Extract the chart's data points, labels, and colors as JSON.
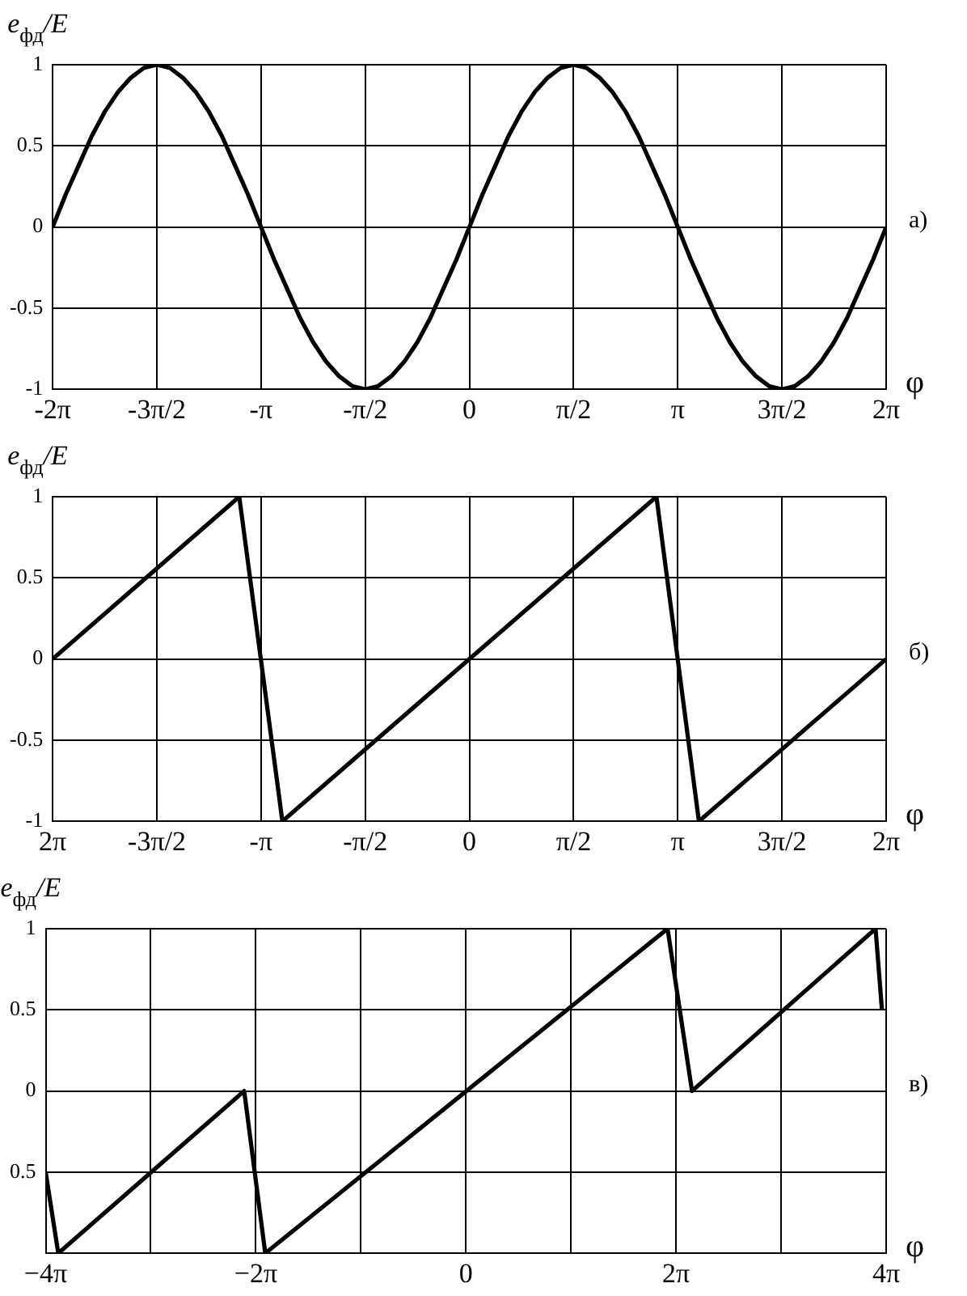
{
  "chart_data": [
    {
      "type": "line",
      "ylabel": "e$_{фд}$/E",
      "xlabel": "φ",
      "annotations": [
        "а)"
      ],
      "grid": true,
      "legend": false,
      "marker": "none",
      "line_style": "solid",
      "x": [
        -6.283,
        -6.087,
        -5.89,
        -5.694,
        -5.498,
        -5.301,
        -5.105,
        -4.909,
        -4.712,
        -4.516,
        -4.32,
        -4.123,
        -3.927,
        -3.731,
        -3.534,
        -3.338,
        -3.142,
        -2.945,
        -2.749,
        -2.553,
        -2.356,
        -2.16,
        -1.963,
        -1.767,
        -1.571,
        -1.374,
        -1.178,
        -0.982,
        -0.785,
        -0.589,
        -0.393,
        -0.196,
        0,
        0.196,
        0.393,
        0.589,
        0.785,
        0.982,
        1.178,
        1.374,
        1.571,
        1.767,
        1.963,
        2.16,
        2.356,
        2.553,
        2.749,
        2.945,
        3.142,
        3.338,
        3.534,
        3.731,
        3.927,
        4.123,
        4.32,
        4.516,
        4.712,
        4.909,
        5.105,
        5.301,
        5.498,
        5.694,
        5.89,
        6.087,
        6.283
      ],
      "series": [
        {
          "color": "#000000",
          "values": [
            0,
            0.2,
            0.38,
            0.56,
            0.71,
            0.83,
            0.92,
            0.98,
            1,
            0.98,
            0.92,
            0.83,
            0.71,
            0.56,
            0.38,
            0.2,
            0,
            -0.2,
            -0.38,
            -0.56,
            -0.71,
            -0.83,
            -0.92,
            -0.98,
            -1,
            -0.98,
            -0.92,
            -0.83,
            -0.71,
            -0.56,
            -0.38,
            -0.2,
            0,
            0.2,
            0.38,
            0.56,
            0.71,
            0.83,
            0.92,
            0.98,
            1,
            0.98,
            0.92,
            0.83,
            0.71,
            0.56,
            0.38,
            0.2,
            0,
            -0.2,
            -0.38,
            -0.56,
            -0.71,
            -0.83,
            -0.92,
            -0.98,
            -1,
            -0.98,
            -0.92,
            -0.83,
            -0.71,
            -0.56,
            -0.38,
            -0.2,
            0
          ]
        }
      ],
      "xlim": [
        -6.283,
        6.283
      ],
      "xticks": [
        {
          "value": -6.283,
          "label": "-2π"
        },
        {
          "value": -4.712,
          "label": "-3π/2"
        },
        {
          "value": -3.142,
          "label": "-π"
        },
        {
          "value": -1.571,
          "label": "-π/2"
        },
        {
          "value": 0,
          "label": "0"
        },
        {
          "value": 1.571,
          "label": "π/2"
        },
        {
          "value": 3.142,
          "label": "π"
        },
        {
          "value": 4.712,
          "label": "3π/2"
        },
        {
          "value": 6.283,
          "label": "2π"
        }
      ],
      "ylim": [
        -1,
        1
      ],
      "yticks": [
        -1,
        -0.5,
        0,
        0.5,
        1
      ]
    },
    {
      "type": "line",
      "ylabel": "e$_{фд}$/E",
      "xlabel": "φ",
      "annotations": [
        "б)"
      ],
      "grid": true,
      "legend": false,
      "marker": "none",
      "line_style": "solid",
      "x": [
        -6.283,
        -3.47,
        -2.82,
        2.82,
        3.46,
        6.283
      ],
      "series": [
        {
          "color": "#000000",
          "values": [
            0,
            1,
            -1,
            1,
            -1,
            0
          ]
        }
      ],
      "xlim": [
        -6.283,
        6.283
      ],
      "xticks": [
        {
          "value": -6.283,
          "label": "2π"
        },
        {
          "value": -4.712,
          "label": "-3π/2"
        },
        {
          "value": -3.142,
          "label": "-π"
        },
        {
          "value": -1.571,
          "label": "-π/2"
        },
        {
          "value": 0,
          "label": "0"
        },
        {
          "value": 1.571,
          "label": "π/2"
        },
        {
          "value": 3.142,
          "label": "π"
        },
        {
          "value": 4.712,
          "label": "3π/2"
        },
        {
          "value": 6.283,
          "label": "2π"
        }
      ],
      "ylim": [
        -1,
        1
      ],
      "yticks": [
        -1,
        -0.5,
        0,
        0.5,
        1
      ]
    },
    {
      "type": "line",
      "ylabel": "e$_{фд}$/E",
      "xlabel": "φ",
      "annotations": [
        "в)"
      ],
      "grid": true,
      "legend": false,
      "marker": "none",
      "line_style": "solid",
      "x": [
        -12.566,
        -12.19,
        -6.63,
        -6.0,
        6.03,
        6.76,
        12.25,
        12.44
      ],
      "series": [
        {
          "color": "#000000",
          "values": [
            -0.5,
            -1,
            0,
            -1,
            1,
            0,
            1,
            0.5
          ]
        }
      ],
      "xlim": [
        -12.566,
        12.566
      ],
      "xticks": [
        {
          "value": -12.566,
          "label": "−4π"
        },
        {
          "value": -9.425,
          "label": null
        },
        {
          "value": -6.283,
          "label": "−2π"
        },
        {
          "value": -3.142,
          "label": null
        },
        {
          "value": 0,
          "label": "0"
        },
        {
          "value": 3.142,
          "label": null
        },
        {
          "value": 6.283,
          "label": "2π"
        },
        {
          "value": 9.425,
          "label": null
        },
        {
          "value": 12.566,
          "label": "4π"
        }
      ],
      "ylim": [
        -1,
        1
      ],
      "yticks": [
        {
          "value": -1,
          "label": null
        },
        {
          "value": -0.5,
          "label": "0.5"
        },
        0,
        0.5,
        1
      ]
    }
  ]
}
